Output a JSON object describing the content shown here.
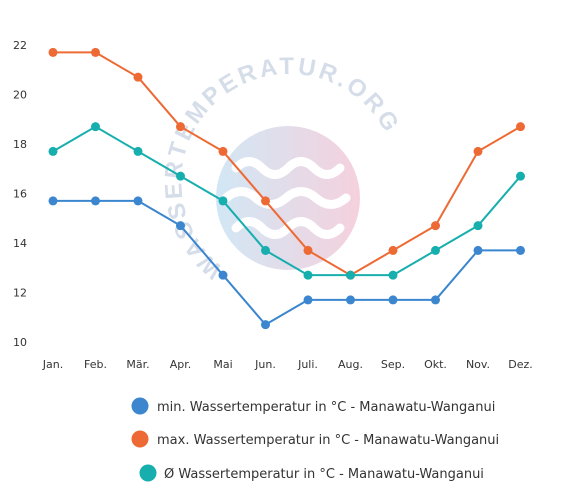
{
  "chart_data": {
    "type": "line",
    "categories": [
      "Jan.",
      "Feb.",
      "Mär.",
      "Apr.",
      "Mai",
      "Jun.",
      "Juli.",
      "Aug.",
      "Sep.",
      "Okt.",
      "Nov.",
      "Dez."
    ],
    "y_ticks": [
      "10",
      "12",
      "14",
      "16",
      "18",
      "20",
      "22"
    ],
    "ylim": [
      10,
      22
    ],
    "grid": false,
    "legend_placement": "bottom",
    "series": [
      {
        "name": "min. Wassertemperatur in °C - Manawatu-Wanganui",
        "color": "#3b86cf",
        "values": [
          15.7,
          15.7,
          15.7,
          14.7,
          12.7,
          10.7,
          11.7,
          11.7,
          11.7,
          11.7,
          13.7,
          13.7
        ]
      },
      {
        "name": "max. Wassertemperatur in °C - Manawatu-Wanganui",
        "color": "#ee6a34",
        "values": [
          21.7,
          21.7,
          20.7,
          18.7,
          17.7,
          15.7,
          13.7,
          12.7,
          13.7,
          14.7,
          17.7,
          18.7
        ]
      },
      {
        "name": "Ø Wassertemperatur in °C - Manawatu-Wanganui",
        "color": "#17aeae",
        "values": [
          17.7,
          18.7,
          17.7,
          16.7,
          15.7,
          13.7,
          12.7,
          12.7,
          12.7,
          13.7,
          14.7,
          16.7
        ]
      }
    ]
  },
  "watermark": {
    "text": "WASSERTEMPERATUR.ORG",
    "icon": "waves-icon"
  }
}
